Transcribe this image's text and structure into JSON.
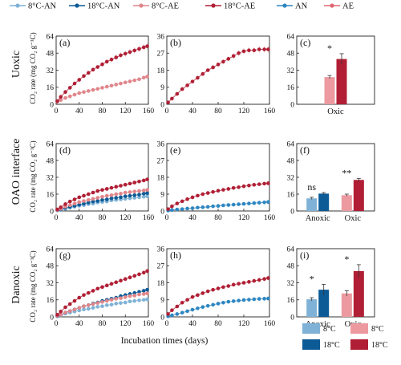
{
  "figure": {
    "legend_top": [
      {
        "label": "8°C-AN",
        "color": "#7fb2d6"
      },
      {
        "label": "18°C-AN",
        "color": "#0c5a96"
      },
      {
        "label": "8°C-AE",
        "color": "#e0868b"
      },
      {
        "label": "18°C-AE",
        "color": "#b01f35"
      },
      {
        "label": "AN",
        "color": "#2e86c1"
      },
      {
        "label": "AE",
        "color": "#e06670"
      }
    ],
    "row_labels": [
      "Uoxic",
      "OAO interface",
      "Danoxic"
    ],
    "ylabel": "CO₂ rate (mg CO₂ g⁻¹C)",
    "xlabel": "Incubation times (days)",
    "bar_legend": [
      {
        "label": "8°C",
        "color": "#7fb2d6"
      },
      {
        "label": "18°C",
        "color": "#0c5a96"
      },
      {
        "label": "8°C",
        "color": "#ec9aa0"
      },
      {
        "label": "18°C",
        "color": "#b01f35"
      }
    ]
  },
  "chart_data": [
    {
      "panel": "(a)",
      "type": "line",
      "xticks": [
        0,
        40,
        80,
        120,
        160
      ],
      "yticks": [
        0,
        16,
        32,
        48,
        64
      ],
      "ylim": [
        0,
        64
      ],
      "series": [
        {
          "key": "8°C-AE",
          "color": "#e0868b",
          "x": [
            2,
            8,
            16,
            24,
            32,
            40,
            48,
            56,
            64,
            72,
            80,
            88,
            96,
            104,
            112,
            120,
            128,
            136,
            144,
            152,
            158
          ],
          "y": [
            2.5,
            4,
            6,
            7.5,
            9,
            10.5,
            11.5,
            12.5,
            13.5,
            14.5,
            15.5,
            16.5,
            17.5,
            18.5,
            19.5,
            20.5,
            21.5,
            22.5,
            23.5,
            25,
            26
          ]
        },
        {
          "key": "18°C-AE",
          "color": "#b01f35",
          "x": [
            2,
            8,
            16,
            24,
            32,
            40,
            48,
            56,
            64,
            72,
            80,
            88,
            96,
            104,
            112,
            120,
            128,
            136,
            144,
            152,
            158
          ],
          "y": [
            3,
            7,
            11.5,
            15.5,
            19.5,
            23,
            26.5,
            29.5,
            32.5,
            35,
            37.5,
            40,
            42,
            44,
            46,
            47.5,
            49,
            50.5,
            52,
            53.5,
            54.5
          ]
        }
      ]
    },
    {
      "panel": "(b)",
      "type": "line",
      "xticks": [
        0,
        40,
        80,
        120,
        160
      ],
      "yticks": [
        0,
        9,
        18,
        27,
        36
      ],
      "ylim": [
        0,
        36
      ],
      "series": [
        {
          "key": "AE",
          "color": "#b01f35",
          "x": [
            2,
            8,
            16,
            24,
            32,
            40,
            48,
            56,
            64,
            72,
            80,
            88,
            96,
            104,
            112,
            120,
            128,
            136,
            144,
            152,
            158
          ],
          "y": [
            1,
            3,
            5.5,
            8,
            10,
            12,
            14,
            16,
            18,
            19.5,
            21,
            22.5,
            24,
            25.5,
            27,
            28,
            28.5,
            28.5,
            29,
            29,
            29
          ]
        }
      ]
    },
    {
      "panel": "(c)",
      "type": "bar",
      "categories": [
        "Oxic"
      ],
      "yticks": [
        0,
        16,
        32,
        48,
        64
      ],
      "ylim": [
        0,
        64
      ],
      "series": [
        {
          "key": "8°C",
          "color": "#ec9aa0",
          "values": [
            25.5
          ],
          "err": [
            1.5
          ]
        },
        {
          "key": "18°C",
          "color": "#b01f35",
          "values": [
            42.5
          ],
          "err": [
            5
          ]
        }
      ],
      "annotations": [
        "*"
      ]
    },
    {
      "panel": "(d)",
      "type": "line",
      "xticks": [
        0,
        40,
        80,
        120,
        160
      ],
      "yticks": [
        0,
        16,
        32,
        48,
        64
      ],
      "ylim": [
        0,
        64
      ],
      "series": [
        {
          "key": "8°C-AN",
          "color": "#7fb2d6",
          "x": [
            2,
            8,
            16,
            24,
            32,
            40,
            48,
            56,
            64,
            72,
            80,
            88,
            96,
            104,
            112,
            120,
            128,
            136,
            144,
            152,
            158
          ],
          "y": [
            0.5,
            1,
            2,
            3,
            4,
            5,
            5.5,
            6.5,
            7,
            8,
            8.5,
            9,
            10,
            10.5,
            11,
            11.5,
            12,
            12.5,
            13,
            13.5,
            14
          ]
        },
        {
          "key": "18°C-AN",
          "color": "#0c5a96",
          "x": [
            2,
            8,
            16,
            24,
            32,
            40,
            48,
            56,
            64,
            72,
            80,
            88,
            96,
            104,
            112,
            120,
            128,
            136,
            144,
            152,
            158
          ],
          "y": [
            0.8,
            1.5,
            3,
            4,
            5,
            6,
            7,
            8,
            9,
            9.5,
            10.5,
            11,
            12,
            12.5,
            13,
            14,
            14.5,
            15,
            15.5,
            16.5,
            17
          ]
        },
        {
          "key": "8°C-AE",
          "color": "#e0868b",
          "x": [
            2,
            8,
            16,
            24,
            32,
            40,
            48,
            56,
            64,
            72,
            80,
            88,
            96,
            104,
            112,
            120,
            128,
            136,
            144,
            152,
            158
          ],
          "y": [
            1,
            2,
            4,
            5.5,
            7,
            8.5,
            9.5,
            10.5,
            11.5,
            12.5,
            13.5,
            14.5,
            15,
            16,
            16.5,
            17.5,
            18,
            18.5,
            19,
            19.5,
            20
          ]
        },
        {
          "key": "18°C-AE",
          "color": "#b01f35",
          "x": [
            2,
            8,
            16,
            24,
            32,
            40,
            48,
            56,
            64,
            72,
            80,
            88,
            96,
            104,
            112,
            120,
            128,
            136,
            144,
            152,
            158
          ],
          "y": [
            1.5,
            3.5,
            6.5,
            9,
            11,
            13,
            14.5,
            16,
            17.5,
            19,
            20,
            21,
            22,
            23,
            24,
            25,
            26,
            27,
            28,
            29,
            30
          ]
        }
      ]
    },
    {
      "panel": "(e)",
      "type": "line",
      "xticks": [
        0,
        40,
        80,
        120,
        160
      ],
      "yticks": [
        0,
        9,
        18,
        27,
        36
      ],
      "ylim": [
        0,
        36
      ],
      "series": [
        {
          "key": "AN",
          "color": "#2e86c1",
          "x": [
            2,
            8,
            16,
            24,
            32,
            40,
            48,
            56,
            64,
            72,
            80,
            88,
            96,
            104,
            112,
            120,
            128,
            136,
            144,
            152,
            158
          ],
          "y": [
            0.2,
            0.5,
            0.8,
            1,
            1.3,
            1.5,
            1.8,
            2,
            2.2,
            2.5,
            2.7,
            3,
            3.2,
            3.4,
            3.6,
            3.8,
            4,
            4.2,
            4.4,
            4.6,
            4.8
          ]
        },
        {
          "key": "AE",
          "color": "#b01f35",
          "x": [
            2,
            8,
            16,
            24,
            32,
            40,
            48,
            56,
            64,
            72,
            80,
            88,
            96,
            104,
            112,
            120,
            128,
            136,
            144,
            152,
            158
          ],
          "y": [
            1,
            2.5,
            4,
            5.2,
            6.3,
            7.3,
            8.2,
            9,
            9.6,
            10.2,
            10.8,
            11.3,
            11.8,
            12.3,
            12.7,
            13.2,
            13.6,
            14,
            14.3,
            14.6,
            14.8
          ]
        }
      ]
    },
    {
      "panel": "(f)",
      "type": "bar",
      "categories": [
        "Anoxic",
        "Oxic"
      ],
      "yticks": [
        0,
        16,
        32,
        48,
        64
      ],
      "ylim": [
        0,
        64
      ],
      "series": [
        {
          "key": "8°C",
          "colors": [
            "#7fb2d6",
            "#ec9aa0"
          ],
          "values": [
            12,
            15
          ],
          "err": [
            1,
            1
          ]
        },
        {
          "key": "18°C",
          "colors": [
            "#0c5a96",
            "#b01f35"
          ],
          "values": [
            16.5,
            29.5
          ],
          "err": [
            1,
            1.5
          ]
        }
      ],
      "annotations": [
        "ns",
        "**"
      ]
    },
    {
      "panel": "(g)",
      "type": "line",
      "xticks": [
        0,
        40,
        80,
        120,
        160
      ],
      "yticks": [
        0,
        16,
        32,
        48,
        64
      ],
      "ylim": [
        0,
        64
      ],
      "series": [
        {
          "key": "8°C-AN",
          "color": "#7fb2d6",
          "x": [
            2,
            8,
            16,
            24,
            32,
            40,
            48,
            56,
            64,
            72,
            80,
            88,
            96,
            104,
            112,
            120,
            128,
            136,
            144,
            152,
            158
          ],
          "y": [
            0.5,
            1.5,
            3,
            4,
            5,
            6,
            7,
            7.5,
            8.5,
            9.5,
            10,
            11,
            11.5,
            12.5,
            13,
            13.5,
            14.5,
            15,
            15.5,
            16,
            16.5
          ]
        },
        {
          "key": "18°C-AN",
          "color": "#0c5a96",
          "x": [
            2,
            8,
            16,
            24,
            32,
            40,
            48,
            56,
            64,
            72,
            80,
            88,
            96,
            104,
            112,
            120,
            128,
            136,
            144,
            152,
            158
          ],
          "y": [
            0.8,
            2,
            4,
            5.5,
            7,
            8.5,
            10,
            11,
            12.5,
            13.5,
            15,
            16,
            17,
            18,
            19.5,
            20.5,
            21.5,
            22.5,
            23.5,
            24.5,
            25.5
          ]
        },
        {
          "key": "8°C-AE",
          "color": "#e0868b",
          "x": [
            2,
            8,
            16,
            24,
            32,
            40,
            48,
            56,
            64,
            72,
            80,
            88,
            96,
            104,
            112,
            120,
            128,
            136,
            144,
            152,
            158
          ],
          "y": [
            1,
            2,
            4,
            5.5,
            7,
            8.5,
            10,
            11,
            12,
            13,
            14,
            15,
            16,
            17,
            17.5,
            18.5,
            19.5,
            20,
            21,
            21.5,
            22
          ]
        },
        {
          "key": "18°C-AE",
          "color": "#b01f35",
          "x": [
            2,
            8,
            16,
            24,
            32,
            40,
            48,
            56,
            64,
            72,
            80,
            88,
            96,
            104,
            112,
            120,
            128,
            136,
            144,
            152,
            158
          ],
          "y": [
            2,
            5,
            9,
            12,
            15,
            18,
            20.5,
            22.5,
            24.5,
            26.5,
            28,
            29.5,
            31,
            32.5,
            34,
            35.5,
            37,
            38.5,
            40,
            41.5,
            43
          ]
        }
      ]
    },
    {
      "panel": "(h)",
      "type": "line",
      "xticks": [
        0,
        40,
        80,
        120,
        160
      ],
      "yticks": [
        0,
        9,
        18,
        27,
        36
      ],
      "ylim": [
        0,
        36
      ],
      "series": [
        {
          "key": "AN",
          "color": "#2e86c1",
          "x": [
            2,
            8,
            16,
            24,
            32,
            40,
            48,
            56,
            64,
            72,
            80,
            88,
            96,
            104,
            112,
            120,
            128,
            136,
            144,
            152,
            158
          ],
          "y": [
            0.3,
            0.8,
            1.5,
            2.2,
            3,
            3.8,
            4.5,
            5.2,
            5.8,
            6.4,
            7,
            7.5,
            8,
            8.3,
            8.6,
            8.9,
            9.1,
            9.3,
            9.5,
            9.6,
            9.7
          ]
        },
        {
          "key": "AE",
          "color": "#b01f35",
          "x": [
            2,
            8,
            16,
            24,
            32,
            40,
            48,
            56,
            64,
            72,
            80,
            88,
            96,
            104,
            112,
            120,
            128,
            136,
            144,
            152,
            158
          ],
          "y": [
            1.5,
            3.5,
            5.5,
            7.5,
            9,
            10.5,
            11.5,
            12.5,
            13.5,
            14.3,
            15,
            15.7,
            16.3,
            17,
            17.5,
            18,
            18.5,
            19,
            19.5,
            20,
            20.5
          ]
        }
      ]
    },
    {
      "panel": "(i)",
      "type": "bar",
      "categories": [
        "Anoxic",
        "Oxic"
      ],
      "yticks": [
        0,
        16,
        32,
        48,
        64
      ],
      "ylim": [
        0,
        64
      ],
      "series": [
        {
          "key": "8°C",
          "colors": [
            "#7fb2d6",
            "#ec9aa0"
          ],
          "values": [
            16.5,
            22
          ],
          "err": [
            1.5,
            2.5
          ]
        },
        {
          "key": "18°C",
          "colors": [
            "#0c5a96",
            "#b01f35"
          ],
          "values": [
            25.5,
            43
          ],
          "err": [
            5,
            6
          ]
        }
      ],
      "annotations": [
        "*",
        "*"
      ]
    }
  ]
}
